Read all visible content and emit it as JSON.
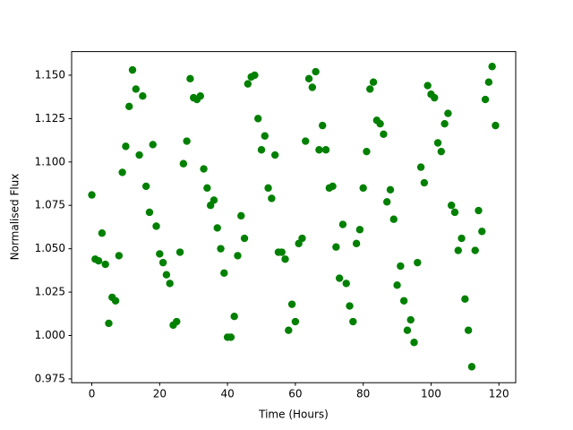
{
  "chart_data": {
    "type": "scatter",
    "xlabel": "Time (Hours)",
    "ylabel": "Normalised Flux",
    "color": "#008000",
    "x": [
      0,
      1,
      2,
      3,
      4,
      5,
      6,
      7,
      8,
      9,
      10,
      11,
      12,
      13,
      14,
      15,
      16,
      17,
      18,
      19,
      20,
      21,
      22,
      23,
      24,
      25,
      26,
      27,
      28,
      29,
      30,
      31,
      32,
      33,
      34,
      35,
      36,
      37,
      38,
      39,
      40,
      41,
      42,
      43,
      44,
      45,
      46,
      47,
      48,
      49,
      50,
      51,
      52,
      53,
      54,
      55,
      56,
      57,
      58,
      59,
      60,
      61,
      62,
      63,
      64,
      65,
      66,
      67,
      68,
      69,
      70,
      71,
      72,
      73,
      74,
      75,
      76,
      77,
      78,
      79,
      80,
      81,
      82,
      83,
      84,
      85,
      86,
      87,
      88,
      89,
      90,
      91,
      92,
      93,
      94,
      95,
      96,
      97,
      98,
      99,
      100,
      101,
      102,
      103,
      104,
      105,
      106,
      107,
      108,
      109,
      110,
      111,
      112,
      113,
      114,
      115,
      116,
      117,
      118,
      119
    ],
    "values": [
      1.081,
      1.044,
      1.043,
      1.059,
      1.041,
      1.007,
      1.022,
      1.02,
      1.046,
      1.094,
      1.109,
      1.132,
      1.153,
      1.142,
      1.104,
      1.138,
      1.086,
      1.071,
      1.11,
      1.063,
      1.047,
      1.042,
      1.035,
      1.03,
      1.006,
      1.008,
      1.048,
      1.099,
      1.112,
      1.148,
      1.137,
      1.136,
      1.138,
      1.096,
      1.085,
      1.075,
      1.078,
      1.062,
      1.05,
      1.036,
      0.999,
      0.999,
      1.011,
      1.046,
      1.069,
      1.056,
      1.145,
      1.149,
      1.15,
      1.125,
      1.107,
      1.115,
      1.085,
      1.079,
      1.104,
      1.048,
      1.048,
      1.044,
      1.003,
      1.018,
      1.008,
      1.053,
      1.056,
      1.112,
      1.148,
      1.143,
      1.152,
      1.107,
      1.121,
      1.107,
      1.085,
      1.086,
      1.051,
      1.033,
      1.064,
      1.03,
      1.017,
      1.008,
      1.053,
      1.061,
      1.085,
      1.106,
      1.142,
      1.146,
      1.124,
      1.122,
      1.116,
      1.077,
      1.084,
      1.067,
      1.029,
      1.04,
      1.02,
      1.003,
      1.009,
      0.996,
      1.042,
      1.097,
      1.088,
      1.144,
      1.139,
      1.137,
      1.111,
      1.106,
      1.122,
      1.128,
      1.075,
      1.071,
      1.049,
      1.056,
      1.021,
      1.003,
      0.982,
      1.049,
      1.072,
      1.06,
      1.136,
      1.146,
      1.155,
      1.121
    ],
    "xlim": [
      -5.95,
      124.95
    ],
    "xticks": [
      0,
      20,
      40,
      60,
      80,
      100,
      120
    ],
    "ylim": [
      0.9728,
      1.1636
    ],
    "yticks": [
      0.975,
      {
        "value": 1,
        "label": "1.000"
      },
      1.025,
      {
        "value": 1.05,
        "label": "1.050"
      },
      1.075,
      {
        "value": 1.1,
        "label": "1.100"
      },
      1.125,
      {
        "value": 1.15,
        "label": "1.150"
      }
    ]
  }
}
